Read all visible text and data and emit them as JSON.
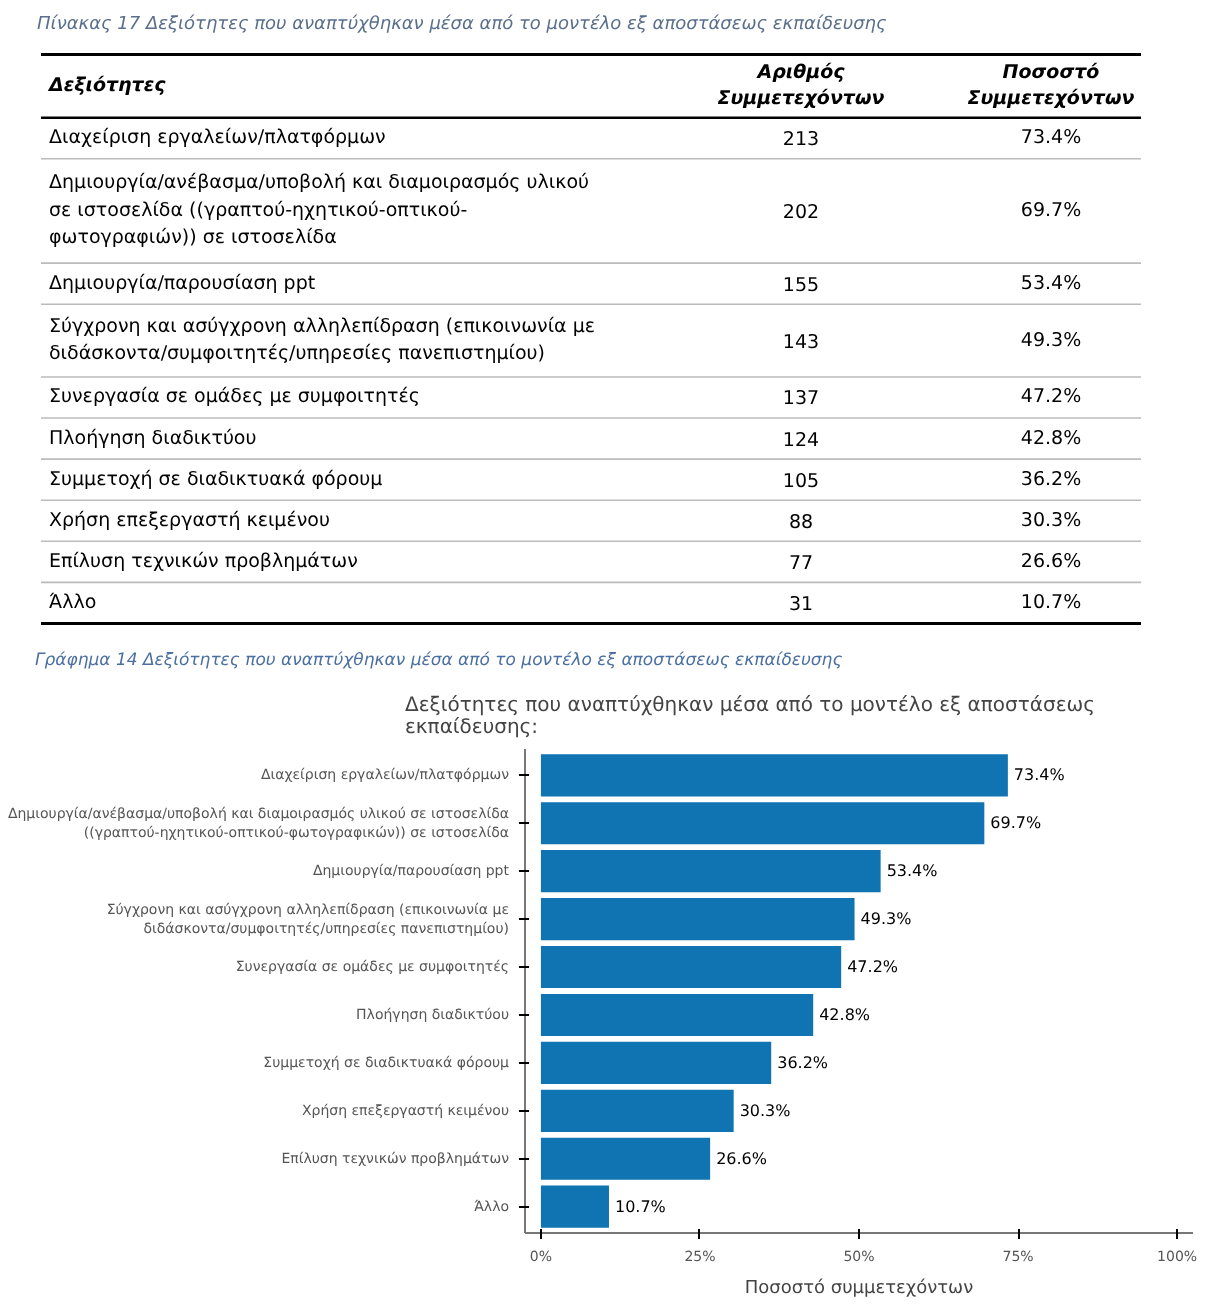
{
  "chart_data": [
    {
      "type": "other",
      "data_labels": true,
      "title": "Πίνακας 17 Δεξιότητες που αναπτύχθηκαν μέσα από το μοντέλο εξ αποστάσεως εκπαίδευσης",
      "xlabel": "Δεξιότητες",
      "categories": [
        "Διαχείριση εργαλείων/πλατφόρμων",
        "Δημιουργία/ανέβασμα/υποβολή και διαμοιρασμός υλικού\nσε ιστοσελίδα ((γραπτού-ηχητικού-οπτικού-\nφωτογραφιών)) σε ιστοσελίδα",
        "Δημιουργία/παρουσίαση ppt",
        "Σύγχρονη και ασύγχρονη αλληλεπίδραση (επικοινωνία με\nδιδάσκοντα/συμφοιτητές/υπηρεσίες πανεπιστημίου)",
        "Συνεργασία σε ομάδες με συμφοιτητές",
        "Πλοήγηση διαδικτύου",
        "Συμμετοχή σε διαδικτυακά φόρουμ",
        "Χρήση επεξεργαστή κειμένου",
        "Επίλυση τεχνικών προβλημάτων",
        "Άλλο"
      ],
      "series": [
        {
          "name": "Αριθμός\nΣυμμετεχόντων",
          "values": [
            213,
            202,
            155,
            143,
            137,
            124,
            105,
            88,
            77,
            31
          ]
        },
        {
          "name": "Ποσοστό\nΣυμμετεχόντων",
          "values": [
            73.4,
            69.7,
            53.4,
            49.3,
            47.2,
            42.8,
            36.2,
            30.3,
            26.6,
            10.7
          ],
          "value_labels": [
            "73.4%",
            "69.7%",
            "53.4%",
            "49.3%",
            "47.2%",
            "42.8%",
            "36.2%",
            "30.3%",
            "26.6%",
            "10.7%"
          ]
        }
      ]
    },
    {
      "type": "bar",
      "orientation": "horizontal",
      "title": "Δεξιότητες που αναπτύχθηκαν μέσα από το μοντέλο εξ αποστάσεως\nεκπαίδευσης:",
      "annotations": [
        "Γράφημα 14 Δεξιότητες που αναπτύχθηκαν μέσα από το μοντέλο εξ αποστάσεως εκπαίδευσης"
      ],
      "xlabel": "Ποσοστό συμμετεχόντων",
      "categories": [
        "Διαχείριση εργαλείων/πλατφόρμων",
        "Δημιουργία/ανέβασμα/υποβολή και διαμοιρασμός υλικού σε ιστοσελίδα\n((γραπτού-ηχητικού-οπτικού-φωτογραφικών)) σε ιστοσελίδα",
        "Δημιουργία/παρουσίαση ppt",
        "Σύγχρονη και ασύγχρονη αλληλεπίδραση (επικοινωνία με\nδιδάσκοντα/συμφοιτητές/υπηρεσίες πανεπιστημίου)",
        "Συνεργασία σε ομάδες με συμφοιτητές",
        "Πλοήγηση διαδικτύου",
        "Συμμετοχή σε διαδικτυακά φόρουμ",
        "Χρήση επεξεργαστή κειμένου",
        "Επίλυση τεχνικών προβλημάτων",
        "Άλλο"
      ],
      "values": [
        73.4,
        69.7,
        53.4,
        49.3,
        47.2,
        42.8,
        36.2,
        30.3,
        26.6,
        10.7
      ],
      "value_labels": [
        "73.4%",
        "69.7%",
        "53.4%",
        "49.3%",
        "47.2%",
        "42.8%",
        "36.2%",
        "30.3%",
        "26.6%",
        "10.7%"
      ],
      "color": "#0f74b1",
      "xlim": [
        -2.5,
        102.5
      ],
      "xticks": [
        {
          "value": 0,
          "label": "0%"
        },
        {
          "value": 25,
          "label": "25%"
        },
        {
          "value": 50,
          "label": "50%"
        },
        {
          "value": 75,
          "label": "75%"
        },
        {
          "value": 100,
          "label": "100%"
        }
      ],
      "grid": false
    }
  ]
}
